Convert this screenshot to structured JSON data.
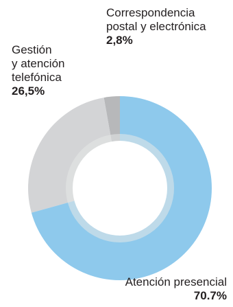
{
  "chart_data": {
    "type": "pie",
    "donut": true,
    "slices": [
      {
        "label_lines": [
          "Correspondencia",
          "postal y electrónica"
        ],
        "value_label": "2,8%",
        "value": 2.8,
        "color": "#b7b8ba"
      },
      {
        "label_lines": [
          "Gestión",
          "y atención",
          "telefónica"
        ],
        "value_label": "26,5%",
        "value": 26.5,
        "color": "#d3d4d6"
      },
      {
        "label_lines": [
          "Atención presencial"
        ],
        "value_label": "70.7%",
        "value": 70.7,
        "color": "#8ec9ec"
      }
    ],
    "order": "counterclockwise from top"
  }
}
